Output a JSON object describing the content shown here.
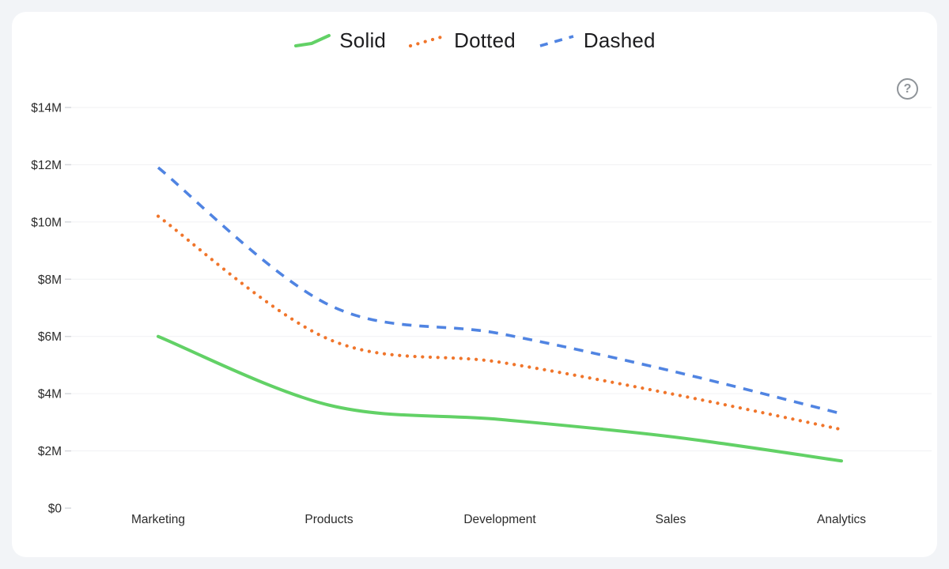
{
  "page": {
    "background_color": "#f2f4f7",
    "card_color": "#ffffff"
  },
  "help": {
    "symbol": "?"
  },
  "chart_data": {
    "type": "line",
    "title": "",
    "categories": [
      "Marketing",
      "Products",
      "Development",
      "Sales",
      "Analytics"
    ],
    "series": [
      {
        "name": "Solid",
        "style": "solid",
        "color": "#62d166",
        "values": [
          6.0,
          3.6,
          3.1,
          2.5,
          1.65
        ]
      },
      {
        "name": "Dotted",
        "style": "dotted",
        "color": "#f0752b",
        "values": [
          10.2,
          5.9,
          5.1,
          4.0,
          2.75
        ]
      },
      {
        "name": "Dashed",
        "style": "dashed",
        "color": "#5084e2",
        "values": [
          11.9,
          7.1,
          6.1,
          4.8,
          3.3
        ]
      }
    ],
    "y_tick_labels": [
      "$0",
      "$2M",
      "$4M",
      "$6M",
      "$8M",
      "$10M",
      "$12M",
      "$14M"
    ],
    "y_tick_values": [
      0,
      2,
      4,
      6,
      8,
      10,
      12,
      14
    ],
    "ylim": [
      0,
      14
    ],
    "xlabel": "",
    "ylabel": "",
    "grid": true,
    "gridline_color": "#f0f1f3",
    "tick_color": "#d6d8dc",
    "legend_position": "top-center",
    "curve": "smooth"
  }
}
